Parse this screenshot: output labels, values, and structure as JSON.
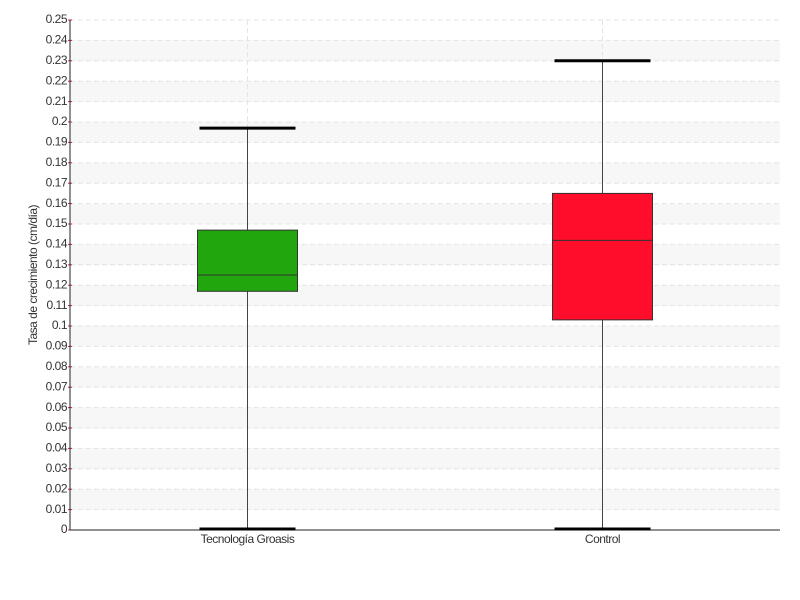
{
  "chart_data": {
    "type": "box",
    "y_label": "Tasa de crecimiento (cm/día)",
    "categories": [
      "Tecnología Groasis",
      "Control"
    ],
    "stats": [
      {
        "min": 0,
        "q1": 0.117,
        "median": 0.125,
        "q3": 0.147,
        "max": 0.197
      },
      {
        "min": 0,
        "q1": 0.103,
        "median": 0.142,
        "q3": 0.165,
        "max": 0.23
      }
    ],
    "colors": [
      "#22a60e",
      "#ff0d2a"
    ],
    "ylim": [
      0,
      0.25
    ],
    "yticks": [
      0,
      0.01,
      0.02,
      0.03,
      0.04,
      0.05,
      0.06,
      0.07,
      0.08,
      0.09,
      0.1,
      0.11,
      0.12,
      0.13,
      0.14,
      0.15,
      0.16,
      0.17,
      0.18,
      0.19,
      0.2,
      0.21,
      0.22,
      0.23,
      0.24,
      0.25
    ],
    "grid": true
  }
}
